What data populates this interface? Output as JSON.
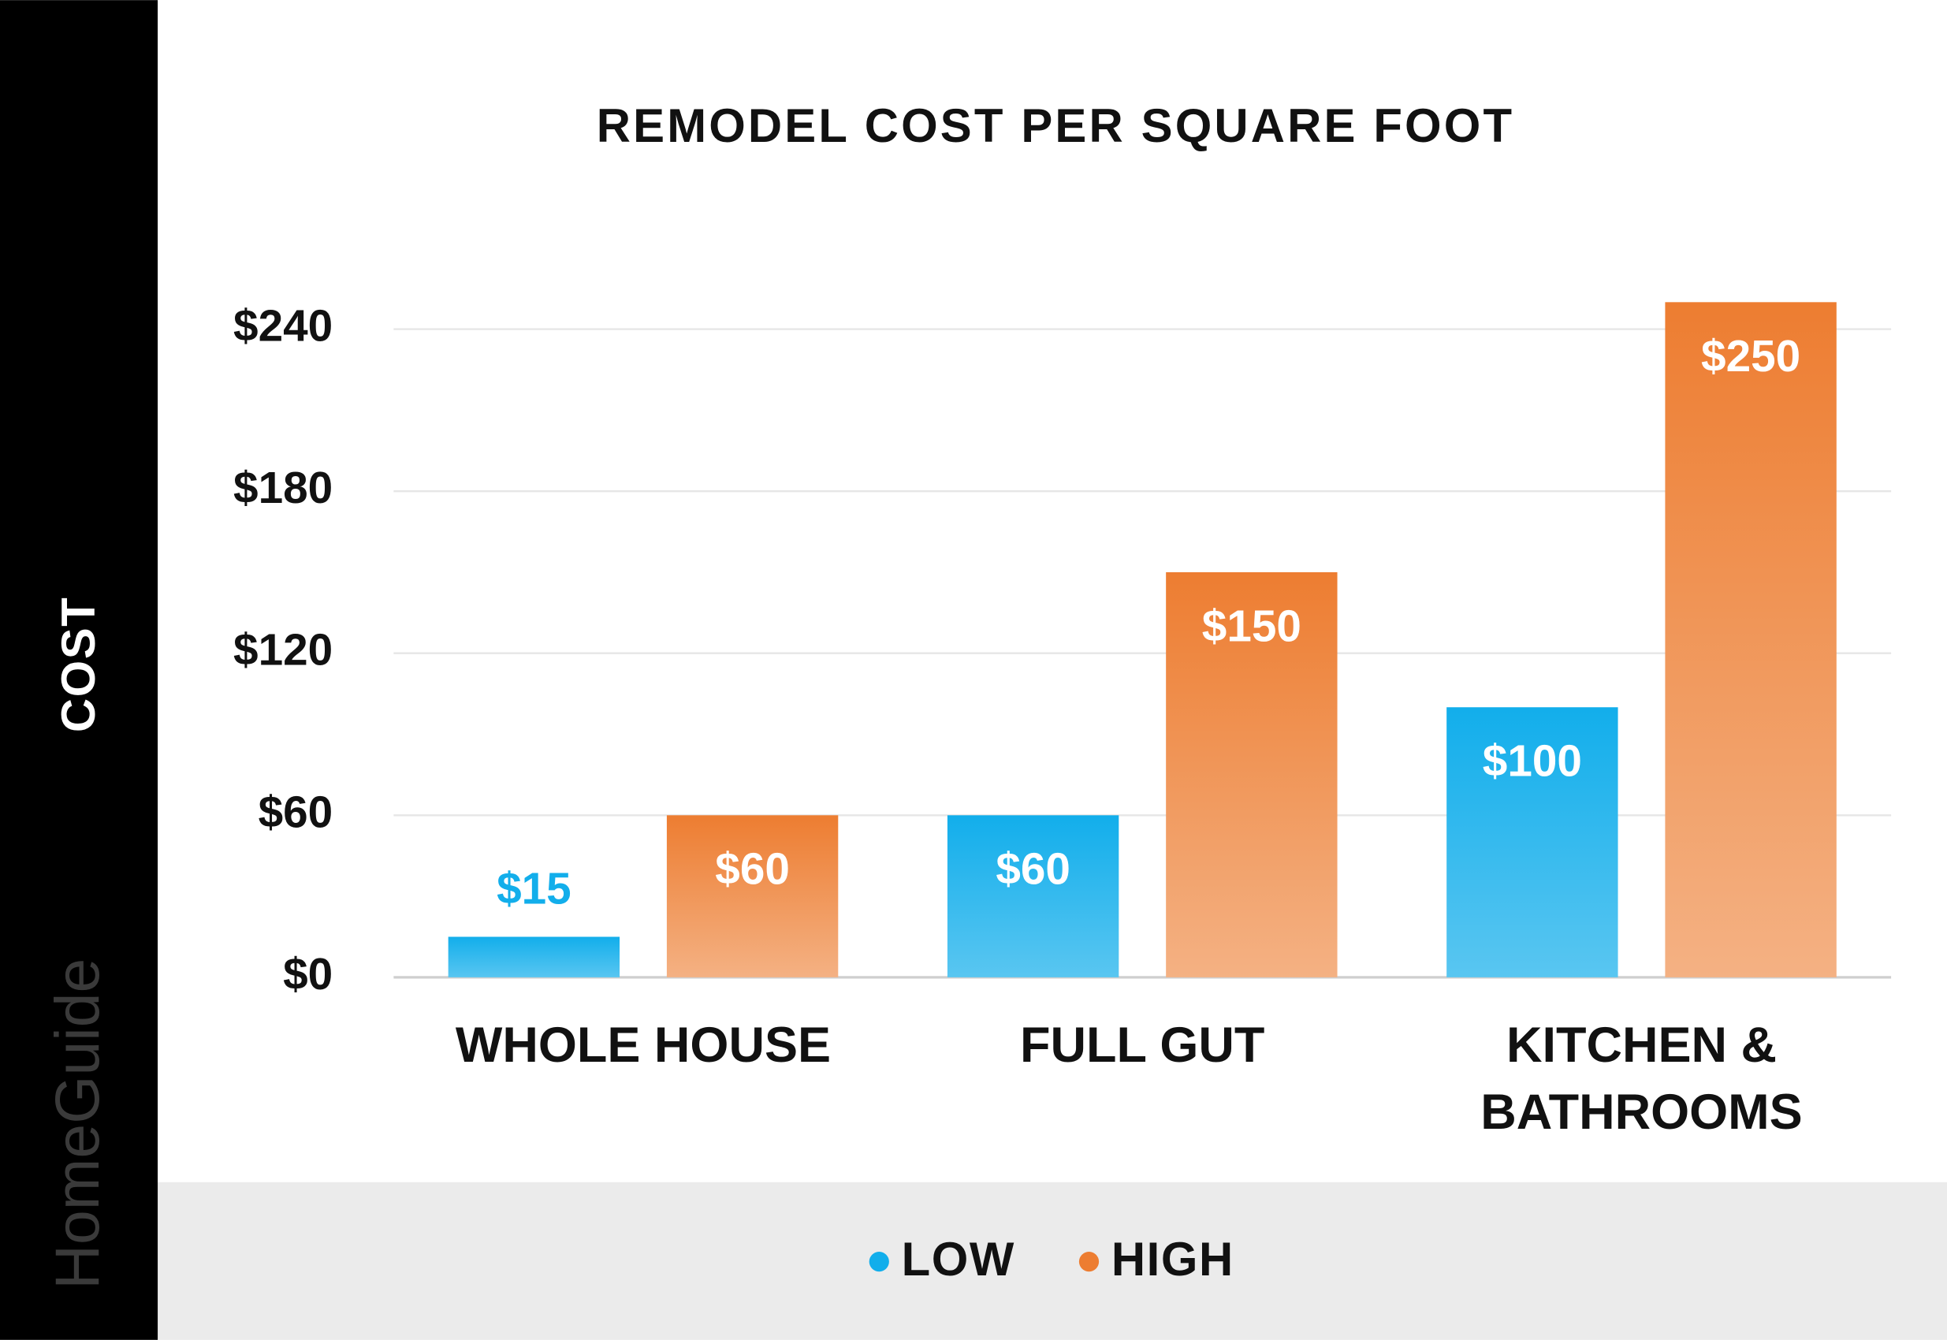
{
  "chart_data": {
    "type": "bar",
    "title": "REMODEL COST PER SQUARE FOOT",
    "y_label": "COST",
    "brand": "HomeGuide",
    "categories": [
      "WHOLE HOUSE",
      "FULL GUT",
      "KITCHEN & BATHROOMS"
    ],
    "series": [
      {
        "name": "LOW",
        "color": "#12aeeb",
        "values": [
          15,
          60,
          100
        ],
        "value_labels": [
          "$15",
          "$60",
          "$100"
        ]
      },
      {
        "name": "HIGH",
        "color": "#ed7d31",
        "values": [
          60,
          150,
          250
        ],
        "value_labels": [
          "$60",
          "$150",
          "$250"
        ]
      }
    ],
    "ylim": [
      0,
      260
    ],
    "yticks": [
      {
        "value": 0,
        "label": "$0"
      },
      {
        "value": 60,
        "label": "$60"
      },
      {
        "value": 120,
        "label": "$120"
      },
      {
        "value": 180,
        "label": "$180"
      },
      {
        "value": 240,
        "label": "$240"
      }
    ],
    "grid": true,
    "legend": "bottom"
  }
}
